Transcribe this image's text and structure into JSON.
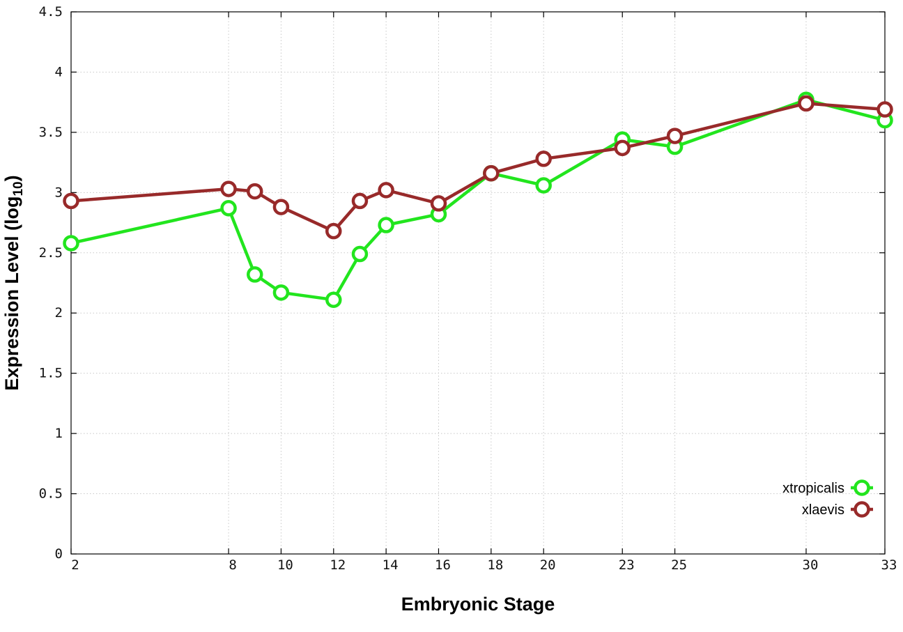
{
  "chart_data": {
    "type": "line",
    "title": "",
    "xlabel": "Embryonic Stage",
    "ylabel_main": "Expression Level (log",
    "ylabel_sub": "10",
    "ylabel_close": ")",
    "xlim": [
      2,
      33
    ],
    "ylim": [
      0,
      4.5
    ],
    "xticks": [
      2,
      8,
      10,
      12,
      14,
      16,
      18,
      20,
      23,
      25,
      30,
      33
    ],
    "yticks": [
      0,
      0.5,
      1,
      1.5,
      2,
      2.5,
      3,
      3.5,
      4,
      4.5
    ],
    "ytick_labels": [
      "0",
      "0.5",
      "1",
      "1.5",
      "2",
      "2.5",
      "3",
      "3.5",
      "4",
      "4.5"
    ],
    "grid": true,
    "legend_position": "bottom-right",
    "x": [
      2,
      8,
      9,
      10,
      12,
      13,
      14,
      16,
      18,
      20,
      23,
      25,
      30,
      33
    ],
    "series": [
      {
        "name": "xtropicalis",
        "color": "#22e51e",
        "values": [
          2.58,
          2.87,
          2.32,
          2.17,
          2.11,
          2.49,
          2.73,
          2.82,
          3.16,
          3.06,
          3.44,
          3.38,
          3.77,
          3.6
        ]
      },
      {
        "name": "xlaevis",
        "color": "#982a2a",
        "values": [
          2.93,
          3.03,
          3.01,
          2.88,
          2.68,
          2.93,
          3.02,
          2.91,
          3.16,
          3.28,
          3.37,
          3.47,
          3.74,
          3.69
        ]
      }
    ]
  }
}
